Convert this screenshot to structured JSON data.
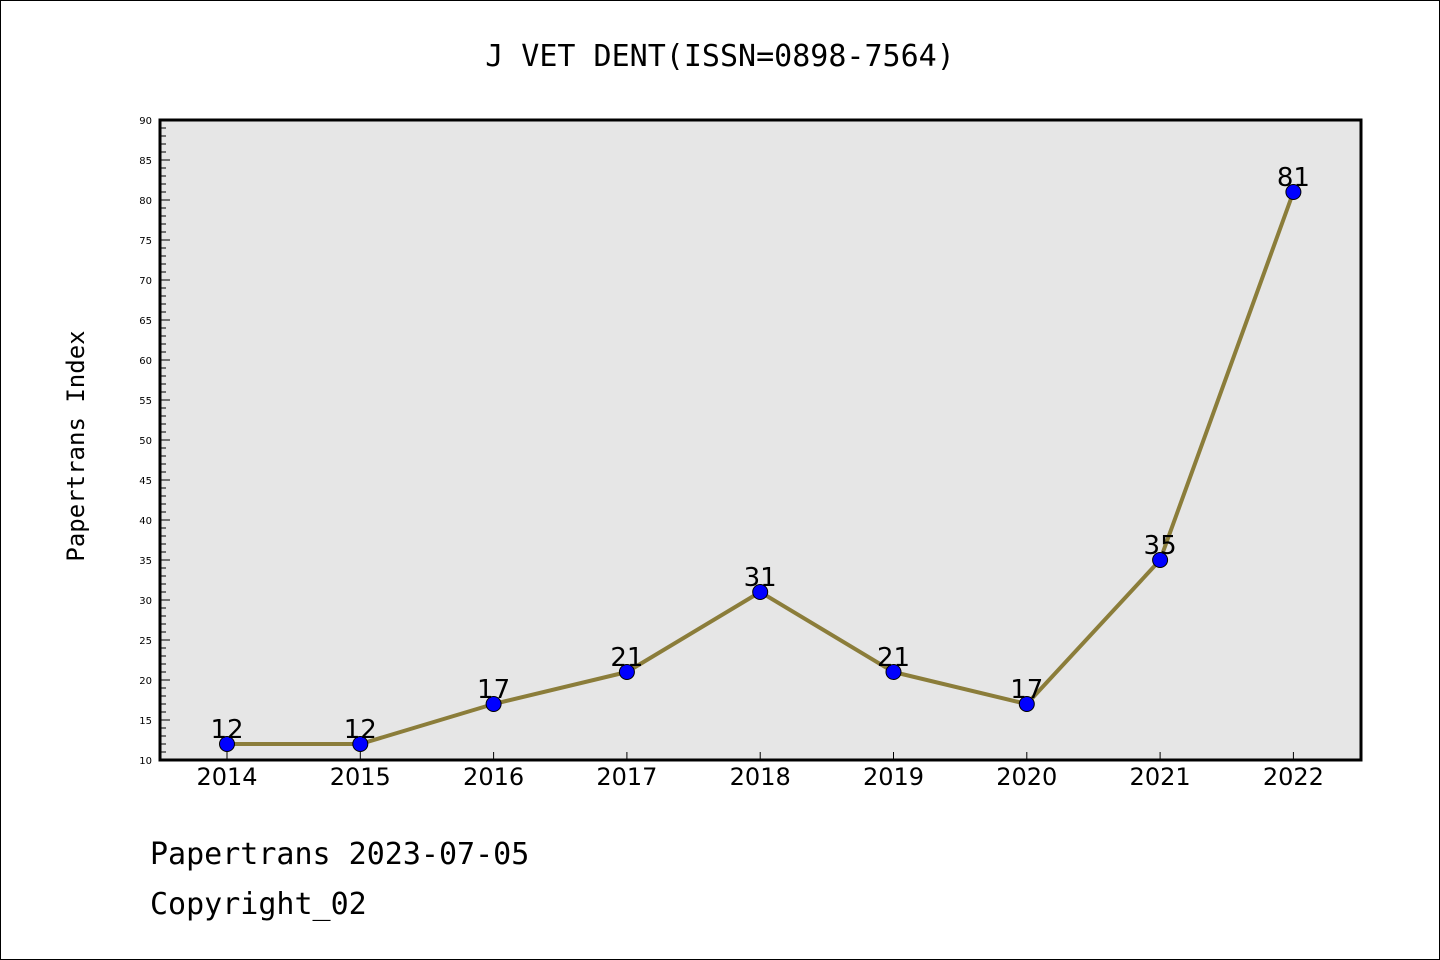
{
  "chart_data": {
    "type": "line",
    "title": "J VET DENT(ISSN=0898-7564)",
    "xlabel": "",
    "ylabel": "Papertrans Index",
    "categories": [
      "2014",
      "2015",
      "2016",
      "2017",
      "2018",
      "2019",
      "2020",
      "2021",
      "2022"
    ],
    "series": [
      {
        "values": [
          12,
          12,
          17,
          21,
          31,
          21,
          17,
          35,
          81
        ]
      }
    ],
    "data_labels": [
      "12",
      "12",
      "17",
      "21",
      "31",
      "21",
      "17",
      "35",
      "81"
    ],
    "ylim": [
      10,
      90
    ],
    "yticks": [
      "10",
      "15",
      "20",
      "25",
      "30",
      "35",
      "40",
      "45",
      "50",
      "55",
      "60",
      "65",
      "70",
      "75",
      "80",
      "85",
      "90"
    ],
    "grid": false,
    "colors": {
      "plot_bg": "#e6e6e6",
      "line": "#8b7d3a",
      "marker": "#0000ff",
      "frame": "#000000"
    }
  },
  "footer": {
    "line1": "Papertrans 2023-07-05",
    "line2": "Copyright_02"
  }
}
